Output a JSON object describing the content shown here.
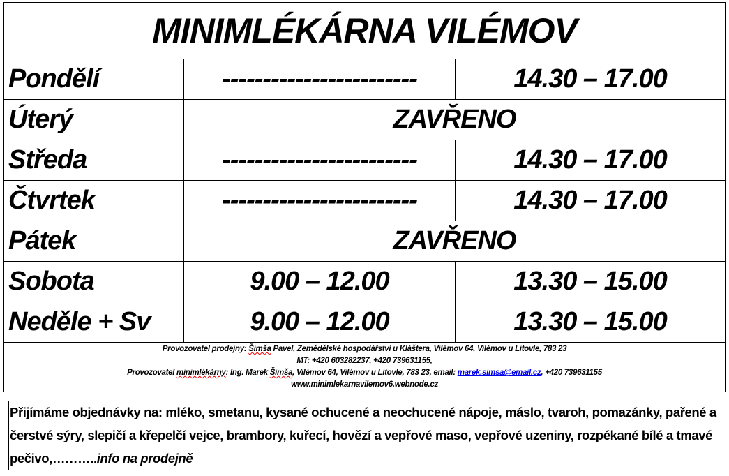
{
  "title": "MINIMLÉKÁRNA VILÉMOV",
  "schedule": [
    {
      "day": "Pondělí",
      "morning": "------------------------",
      "afternoon": "14.30 – 17.00"
    },
    {
      "day": "Úterý",
      "closed": "ZAVŘENO"
    },
    {
      "day": "Středa",
      "morning": "------------------------",
      "afternoon": "14.30 – 17.00"
    },
    {
      "day": "Čtvrtek",
      "morning": "------------------------",
      "afternoon": "14.30 – 17.00"
    },
    {
      "day": "Pátek",
      "closed": "ZAVŘENO"
    },
    {
      "day": "Sobota",
      "morning": "9.00 – 12.00",
      "afternoon": "13.30 – 15.00"
    },
    {
      "day": "Neděle + Sv",
      "morning": "9.00 – 12.00",
      "afternoon": "13.30 – 15.00"
    }
  ],
  "footer": {
    "line1_a": "Provozovatel prodejny: ",
    "line1_name": "Šimša",
    "line1_b": " Pavel, Zemědělské hospodářství u Kláštera, Vilémov 64, Vilémov u Litovle, 783 23",
    "line2": "MT: +420 603282237, +420 739631155,",
    "line3_a": "Provozovatel ",
    "line3_word": "minimlékárny",
    "line3_b": ": Ing. Marek ",
    "line3_name": "Šimša",
    "line3_c": ", Vilémov 64, Vilémov u Litovle, 783 23, email: ",
    "email": "marek.simsa@email.cz",
    "line3_d": ", +420 739631155",
    "website": "www.minimlekarnavilemov6.webnode.cz"
  },
  "orders": {
    "text": "Přijímáme objednávky na: mléko, smetanu, kysané ochucené a neochucené nápoje, máslo, tvaroh, pomazánky, pařené a čerstvé sýry, slepičí a křepelčí vejce, brambory, kuřecí, hovězí a vepřové maso, vepřové uzeniny, rozpékané bílé a tmavé pečivo,………..",
    "italic": "info na prodejně"
  }
}
